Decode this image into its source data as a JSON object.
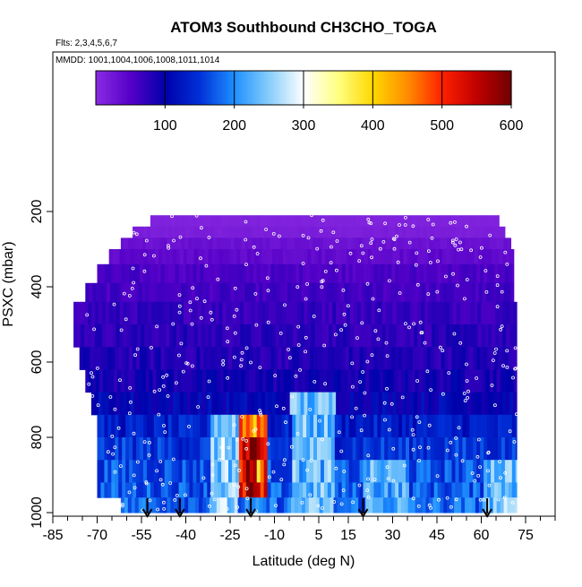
{
  "chart_data": {
    "type": "heatmap",
    "title": "ATOM3 Southbound CH3CHO_TOGA",
    "flights_note": "Flts: 2,3,4,5,6,7",
    "mmdd_note": "MMDD: 1001,1004,1006,1008,1011,1014",
    "xlabel": "Latitude (deg N)",
    "ylabel": "PSXC (mbar)",
    "xlim": [
      -85,
      85
    ],
    "ylim": [
      1020,
      50
    ],
    "x_ticks": [
      -85,
      -70,
      -55,
      -40,
      -25,
      -10,
      5,
      15,
      30,
      45,
      60,
      75
    ],
    "x_tick_labels": [
      "-85",
      "-70",
      "-55",
      "-40",
      "-25",
      "-10",
      "5",
      "15",
      "30",
      "45",
      "60",
      "75"
    ],
    "y_ticks": [
      200,
      400,
      600,
      800,
      1000
    ],
    "y_tick_labels": [
      "200",
      "400",
      "600",
      "800",
      "1000"
    ],
    "colorbar": {
      "min": 0,
      "max": 600,
      "ticks": [
        100,
        200,
        300,
        400,
        500,
        600
      ],
      "tick_labels": [
        "100",
        "200",
        "300",
        "400",
        "500",
        "600"
      ],
      "colors": [
        "#8a2be2",
        "#5500c8",
        "#0000aa",
        "#0030d8",
        "#1e90ff",
        "#87cefa",
        "#ffffff",
        "#ffff80",
        "#ffd700",
        "#ff8c00",
        "#ff2000",
        "#c00000",
        "#700000"
      ]
    },
    "bands": [
      {
        "p_top": 210,
        "p_bot": 240,
        "lat_start": -52,
        "lat_end": 66,
        "value": 10
      },
      {
        "p_top": 240,
        "p_bot": 270,
        "lat_start": -58,
        "lat_end": 68,
        "value": 15
      },
      {
        "p_top": 270,
        "p_bot": 300,
        "lat_start": -62,
        "lat_end": 70,
        "value": 30
      },
      {
        "p_top": 300,
        "p_bot": 340,
        "lat_start": -66,
        "lat_end": 71,
        "value": 40
      },
      {
        "p_top": 340,
        "p_bot": 390,
        "lat_start": -70,
        "lat_end": 71,
        "value": 55
      },
      {
        "p_top": 390,
        "p_bot": 440,
        "lat_start": -74,
        "lat_end": 71,
        "value": 60
      },
      {
        "p_top": 440,
        "p_bot": 500,
        "lat_start": -78,
        "lat_end": 72,
        "value": 70
      },
      {
        "p_top": 500,
        "p_bot": 560,
        "lat_start": -78,
        "lat_end": 72,
        "value": 75
      },
      {
        "p_top": 560,
        "p_bot": 620,
        "lat_start": -76,
        "lat_end": 72,
        "value": 80
      },
      {
        "p_top": 620,
        "p_bot": 680,
        "lat_start": -74,
        "lat_end": 72,
        "value": 90
      },
      {
        "p_top": 680,
        "p_bot": 740,
        "lat_start": -72,
        "lat_end": 72,
        "value": 105
      },
      {
        "p_top": 740,
        "p_bot": 800,
        "lat_start": -70,
        "lat_end": 72,
        "value": 130
      },
      {
        "p_top": 800,
        "p_bot": 860,
        "lat_start": -70,
        "lat_end": 72,
        "value": 150
      },
      {
        "p_top": 860,
        "p_bot": 920,
        "lat_start": -70,
        "lat_end": 72,
        "value": 165
      },
      {
        "p_top": 920,
        "p_bot": 960,
        "lat_start": -70,
        "lat_end": 72,
        "value": 170
      },
      {
        "p_top": 960,
        "p_bot": 1000,
        "lat_start": -62,
        "lat_end": 72,
        "value": 180
      }
    ],
    "hotspots": [
      {
        "lat_start": -32,
        "lat_end": -23,
        "p_top": 760,
        "p_bot": 980,
        "value": 250
      },
      {
        "lat_start": -23,
        "lat_end": -13,
        "p_top": 760,
        "p_bot": 960,
        "value": 470
      },
      {
        "lat_start": -21,
        "lat_end": -16,
        "p_top": 800,
        "p_bot": 930,
        "value": 550
      },
      {
        "lat_start": -60,
        "lat_end": -45,
        "p_top": 700,
        "p_bot": 900,
        "value": 40
      },
      {
        "lat_start": -5,
        "lat_end": 10,
        "p_top": 700,
        "p_bot": 1000,
        "value": 230
      },
      {
        "lat_start": 20,
        "lat_end": 35,
        "p_top": 880,
        "p_bot": 1000,
        "value": 220
      },
      {
        "lat_start": 60,
        "lat_end": 72,
        "p_top": 880,
        "p_bot": 1000,
        "value": 240
      }
    ],
    "arrows_lat": [
      -53,
      -42,
      -18,
      20,
      62
    ]
  }
}
